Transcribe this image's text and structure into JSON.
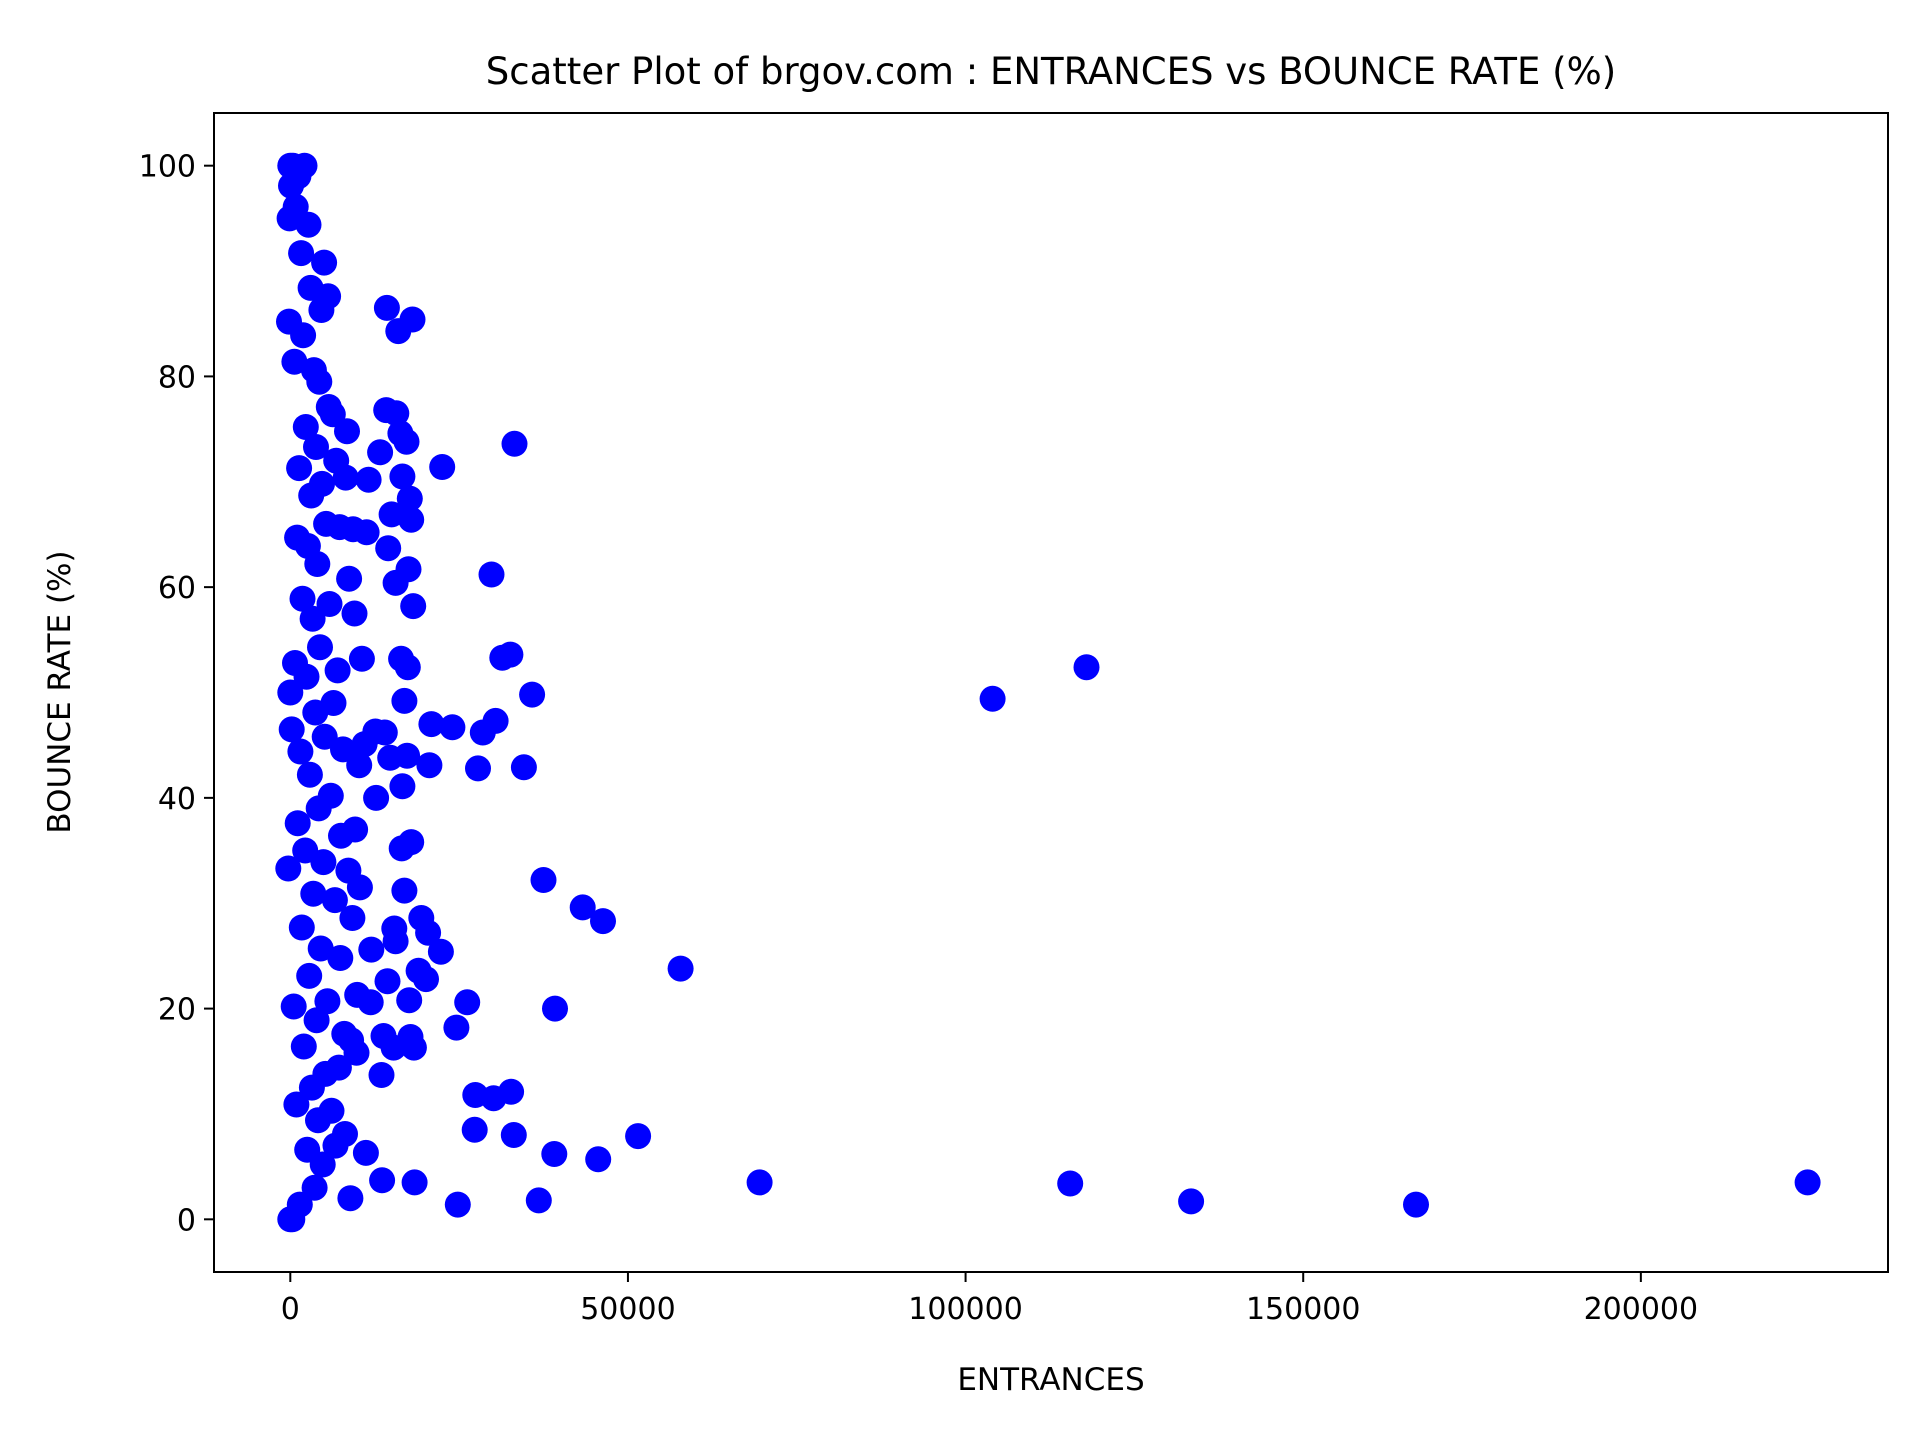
{
  "chart_data": {
    "type": "scatter",
    "title": "Scatter Plot of brgov.com : ENTRANCES vs BOUNCE RATE (%)",
    "xlabel": "ENTRANCES",
    "ylabel": "BOUNCE RATE (%)",
    "xlim": [
      -11300,
      236600
    ],
    "ylim": [
      -5,
      105
    ],
    "xticks": [
      0,
      50000,
      100000,
      150000,
      200000
    ],
    "xtick_labels": [
      "0",
      "50000",
      "100000",
      "150000",
      "200000"
    ],
    "yticks": [
      0,
      20,
      40,
      60,
      80,
      100
    ],
    "ytick_labels": [
      "0",
      "20",
      "40",
      "60",
      "80",
      "100"
    ],
    "grid": false,
    "marker_color": "#0000ff",
    "series": [
      {
        "points": [
          [
            224700,
            3.5
          ],
          [
            166700,
            1.4
          ],
          [
            133400,
            1.7
          ],
          [
            115500,
            3.4
          ],
          [
            117900,
            52.4
          ],
          [
            104000,
            49.4
          ],
          [
            69500,
            3.5
          ],
          [
            57800,
            23.8
          ],
          [
            51500,
            7.9
          ],
          [
            46300,
            28.3
          ],
          [
            45600,
            5.7
          ],
          [
            43300,
            29.6
          ],
          [
            39200,
            20.0
          ],
          [
            39100,
            6.2
          ],
          [
            37500,
            32.2
          ],
          [
            36800,
            1.8
          ],
          [
            35800,
            49.8
          ],
          [
            34600,
            42.9
          ],
          [
            33200,
            73.6
          ],
          [
            33100,
            8.0
          ],
          [
            32700,
            12.1
          ],
          [
            32600,
            53.6
          ],
          [
            31400,
            53.3
          ],
          [
            30400,
            47.3
          ],
          [
            30100,
            11.5
          ],
          [
            29800,
            61.2
          ],
          [
            28500,
            46.2
          ],
          [
            27800,
            42.8
          ],
          [
            27400,
            11.8
          ],
          [
            27300,
            8.5
          ],
          [
            26200,
            20.6
          ],
          [
            24800,
            1.4
          ],
          [
            24600,
            18.2
          ],
          [
            24000,
            46.7
          ],
          [
            22500,
            71.4
          ],
          [
            22300,
            25.4
          ],
          [
            20900,
            47.0
          ],
          [
            20600,
            43.1
          ],
          [
            20400,
            27.2
          ],
          [
            20100,
            22.8
          ],
          [
            19400,
            28.6
          ],
          [
            19000,
            23.6
          ],
          [
            18400,
            3.5
          ],
          [
            18300,
            16.3
          ],
          [
            18200,
            58.2
          ],
          [
            18100,
            85.4
          ],
          [
            17900,
            66.4
          ],
          [
            17900,
            35.8
          ],
          [
            17800,
            17.3
          ],
          [
            17700,
            68.4
          ],
          [
            17600,
            20.8
          ],
          [
            17500,
            61.7
          ],
          [
            17400,
            52.4
          ],
          [
            17300,
            44.0
          ],
          [
            17200,
            73.8
          ],
          [
            16900,
            49.2
          ],
          [
            16900,
            31.2
          ],
          [
            16600,
            70.5
          ],
          [
            16600,
            41.1
          ],
          [
            16500,
            35.2
          ],
          [
            16400,
            53.2
          ],
          [
            16300,
            74.6
          ],
          [
            16000,
            84.3
          ],
          [
            15700,
            76.5
          ],
          [
            15600,
            60.4
          ],
          [
            15600,
            26.4
          ],
          [
            15400,
            27.6
          ],
          [
            15300,
            16.3
          ],
          [
            15000,
            66.9
          ],
          [
            14800,
            43.8
          ],
          [
            14500,
            63.7
          ],
          [
            14400,
            22.6
          ],
          [
            14300,
            86.5
          ],
          [
            14200,
            76.8
          ],
          [
            14000,
            46.2
          ],
          [
            13800,
            17.4
          ],
          [
            13600,
            3.7
          ],
          [
            13500,
            13.7
          ],
          [
            13300,
            72.8
          ],
          [
            12700,
            40.0
          ],
          [
            12600,
            46.3
          ],
          [
            12000,
            25.6
          ],
          [
            11900,
            20.6
          ],
          [
            11600,
            70.2
          ],
          [
            11300,
            65.2
          ],
          [
            11200,
            6.3
          ],
          [
            11000,
            45.1
          ],
          [
            10600,
            53.2
          ],
          [
            10300,
            31.5
          ],
          [
            10200,
            43.1
          ],
          [
            9900,
            21.3
          ],
          [
            9800,
            15.8
          ],
          [
            9600,
            37.0
          ],
          [
            9500,
            57.5
          ],
          [
            9300,
            65.5
          ],
          [
            9200,
            28.6
          ],
          [
            9000,
            17.0
          ],
          [
            8900,
            2.0
          ],
          [
            8700,
            60.8
          ],
          [
            8600,
            33.1
          ],
          [
            8400,
            74.8
          ],
          [
            8200,
            70.4
          ],
          [
            8100,
            8.1
          ],
          [
            8000,
            17.6
          ],
          [
            7800,
            44.6
          ],
          [
            7500,
            36.4
          ],
          [
            7400,
            24.8
          ],
          [
            7300,
            65.7
          ],
          [
            7200,
            14.4
          ],
          [
            7000,
            52.1
          ],
          [
            6800,
            72.0
          ],
          [
            6700,
            7.0
          ],
          [
            6600,
            30.3
          ],
          [
            6400,
            49.0
          ],
          [
            6300,
            76.4
          ],
          [
            6100,
            10.3
          ],
          [
            6000,
            40.2
          ],
          [
            5800,
            58.4
          ],
          [
            5700,
            77.1
          ],
          [
            5600,
            87.6
          ],
          [
            5500,
            20.7
          ],
          [
            5300,
            66.0
          ],
          [
            5200,
            13.8
          ],
          [
            5100,
            45.8
          ],
          [
            5000,
            90.8
          ],
          [
            4900,
            33.9
          ],
          [
            4800,
            5.2
          ],
          [
            4700,
            69.8
          ],
          [
            4600,
            86.3
          ],
          [
            4500,
            25.7
          ],
          [
            4400,
            54.3
          ],
          [
            4300,
            79.5
          ],
          [
            4200,
            39.0
          ],
          [
            4100,
            9.4
          ],
          [
            4000,
            62.2
          ],
          [
            3900,
            18.9
          ],
          [
            3800,
            73.3
          ],
          [
            3700,
            48.1
          ],
          [
            3600,
            3.0
          ],
          [
            3500,
            80.6
          ],
          [
            3400,
            30.9
          ],
          [
            3300,
            57.0
          ],
          [
            3200,
            12.5
          ],
          [
            3100,
            68.7
          ],
          [
            3000,
            88.4
          ],
          [
            2900,
            42.2
          ],
          [
            2800,
            23.1
          ],
          [
            2700,
            94.4
          ],
          [
            2600,
            63.9
          ],
          [
            2500,
            6.6
          ],
          [
            2400,
            51.5
          ],
          [
            2300,
            75.2
          ],
          [
            2200,
            35.0
          ],
          [
            2100,
            100.0
          ],
          [
            2000,
            16.4
          ],
          [
            1900,
            83.9
          ],
          [
            1800,
            58.9
          ],
          [
            1700,
            27.7
          ],
          [
            1600,
            91.7
          ],
          [
            1500,
            44.4
          ],
          [
            1400,
            1.4
          ],
          [
            1300,
            71.3
          ],
          [
            1200,
            99.0
          ],
          [
            1100,
            37.6
          ],
          [
            1000,
            64.7
          ],
          [
            900,
            10.9
          ],
          [
            800,
            96.1
          ],
          [
            700,
            52.8
          ],
          [
            600,
            81.4
          ],
          [
            500,
            20.2
          ],
          [
            400,
            100.0
          ],
          [
            300,
            0.0
          ],
          [
            200,
            46.5
          ],
          [
            100,
            98.1
          ],
          [
            0,
            0.0
          ],
          [
            0,
            100.0
          ],
          [
            0,
            50.0
          ],
          [
            -100,
            95.0
          ],
          [
            -200,
            85.2
          ],
          [
            -300,
            33.3
          ]
        ]
      }
    ]
  }
}
